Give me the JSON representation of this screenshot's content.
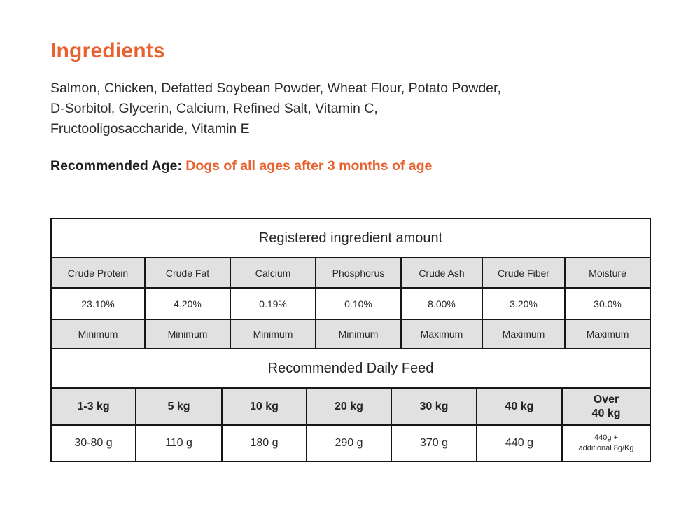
{
  "page": {
    "heading": "Ingredients",
    "ingredients_text": "Salmon, Chicken, Defatted Soybean Powder, Wheat Flour, Potato Powder,\nD-Sorbitol, Glycerin, Calcium, Refined Salt, Vitamin C,\nFructooligosaccharide, Vitamin E",
    "recommended_age_label": "Recommended Age: ",
    "recommended_age_value": "Dogs of all ages after 3 months of age"
  },
  "colors": {
    "accent_orange": "#e8622f",
    "text_dark": "#2b2b2b",
    "table_border": "#161616",
    "cell_gray": "#e1e1e1",
    "background": "#ffffff"
  },
  "ingredient_table": {
    "title": "Registered ingredient amount",
    "columns": [
      "Crude Protein",
      "Crude Fat",
      "Calcium",
      "Phosphorus",
      "Crude Ash",
      "Crude Fiber",
      "Moisture"
    ],
    "values": [
      "23.10%",
      "4.20%",
      "0.19%",
      "0.10%",
      "8.00%",
      "3.20%",
      "30.0%"
    ],
    "limits": [
      "Minimum",
      "Minimum",
      "Minimum",
      "Minimum",
      "Maximum",
      "Maximum",
      "Maximum"
    ]
  },
  "feed_table": {
    "title": "Recommended Daily Feed",
    "weights": [
      "1-3 kg",
      "5 kg",
      "10 kg",
      "20 kg",
      "30 kg",
      "40 kg",
      "Over\n40 kg"
    ],
    "amounts": [
      "30-80 g",
      "110 g",
      "180 g",
      "290 g",
      "370 g",
      "440 g",
      "440g +\nadditional 8g/Kg"
    ]
  }
}
